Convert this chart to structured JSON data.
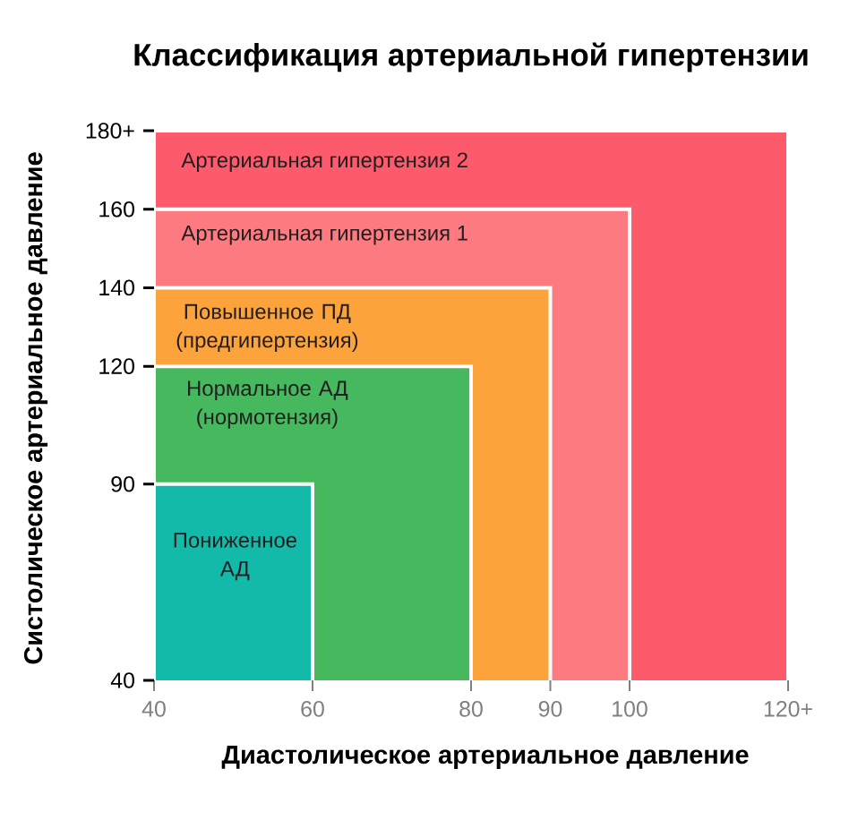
{
  "chart_data": {
    "type": "area",
    "title": "Классификация артериальной гипертензии",
    "xlabel": "Диастолическое артериальное давление",
    "ylabel": "Систолическое артериальное давление",
    "xlim": [
      40,
      120
    ],
    "ylim": [
      40,
      180
    ],
    "xticks": [
      40,
      60,
      80,
      90,
      100,
      {
        "value": 120,
        "label": "120+"
      }
    ],
    "yticks": [
      40,
      90,
      120,
      140,
      160,
      {
        "value": 180,
        "label": "180+"
      }
    ],
    "series": [
      {
        "name": "Артериальная гипертензия 2",
        "color": "#fd5a6b",
        "x": [
          40,
          120
        ],
        "values": [
          180,
          180
        ]
      },
      {
        "name": "Артериальная гипертензия 1",
        "color": "#fd7b80",
        "x": [
          40,
          100
        ],
        "values": [
          160,
          160
        ]
      },
      {
        "name": "Повышенное ПД (предгипертензия)",
        "color": "#fca33c",
        "x": [
          40,
          90
        ],
        "values": [
          140,
          140
        ]
      },
      {
        "name": "Нормальное АД (нормотензия)",
        "color": "#46b95e",
        "x": [
          40,
          80
        ],
        "values": [
          120,
          120
        ]
      },
      {
        "name": "Пониженное АД",
        "color": "#13b9a9",
        "x": [
          40,
          60
        ],
        "values": [
          90,
          90
        ]
      }
    ]
  }
}
